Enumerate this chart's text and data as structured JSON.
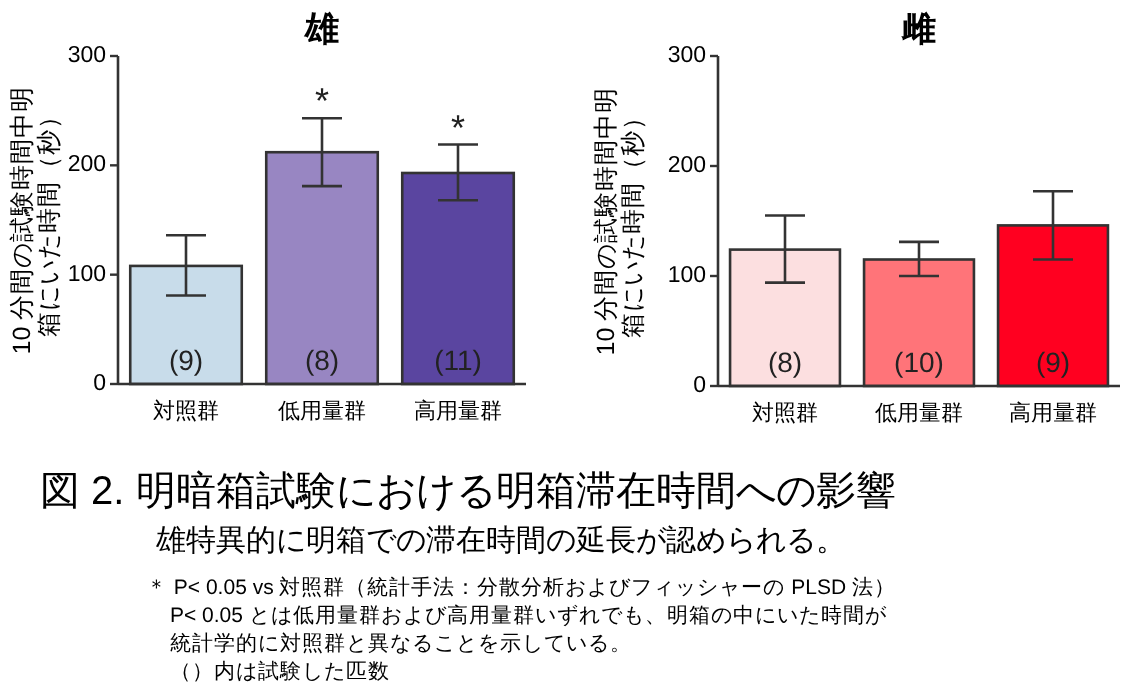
{
  "chart_data": [
    {
      "type": "bar",
      "title": "雄",
      "ylabel": "10 分間の試験時間中明箱にいた時間（秒）",
      "categories": [
        "対照群",
        "低用量群",
        "高用量群"
      ],
      "values": [
        108,
        212,
        193
      ],
      "colors": [
        "#c8dcea",
        "#9886c2",
        "#5a45a0"
      ],
      "errors": [
        [
          81,
          136
        ],
        [
          181,
          243
        ],
        [
          168,
          219
        ]
      ],
      "ylim": [
        0,
        300
      ],
      "yticks": [
        0,
        100,
        200,
        300
      ],
      "annotations": [
        {
          "text": "(9)",
          "x": "対照群",
          "y": 0
        },
        {
          "text": "(8)",
          "x": "低用量群",
          "y": 0
        },
        {
          "text": "(11)",
          "x": "高用量群",
          "y": 0
        },
        {
          "text": "*",
          "x": "低用量群",
          "y": 243
        },
        {
          "text": "*",
          "x": "高用量群",
          "y": 219
        }
      ]
    },
    {
      "type": "bar",
      "title": "雌",
      "ylabel": "10 分間の試験時間中明箱にいた時間（秒）",
      "categories": [
        "対照群",
        "低用量群",
        "高用量群"
      ],
      "values": [
        124,
        115,
        146
      ],
      "colors": [
        "#fcdfe0",
        "#ff7479",
        "#ff0020"
      ],
      "errors": [
        [
          94,
          155
        ],
        [
          100,
          131
        ],
        [
          115,
          177
        ]
      ],
      "ylim": [
        0,
        300
      ],
      "yticks": [
        0,
        100,
        200,
        300
      ],
      "annotations": [
        {
          "text": "(8)",
          "x": "対照群",
          "y": 0
        },
        {
          "text": "(10)",
          "x": "低用量群",
          "y": 0
        },
        {
          "text": "(9)",
          "x": "高用量群",
          "y": 0
        }
      ]
    },
    {
      "type": "other",
      "title": "図 2. 明暗箱試験における明箱滞在時間への影響",
      "subtitle": "雄特異的に明箱での滞在時間の延長が認められる。",
      "annotations": [
        "＊ P< 0.05 vs 対照群（統計手法：分散分析およびフィッシャーの PLSD 法）",
        "P< 0.05 とは低用量群および高用量群いずれでも、明箱の中にいた時間が",
        "統計学的に対照群と異なることを示している。",
        "（）内は試験した匹数"
      ]
    }
  ]
}
